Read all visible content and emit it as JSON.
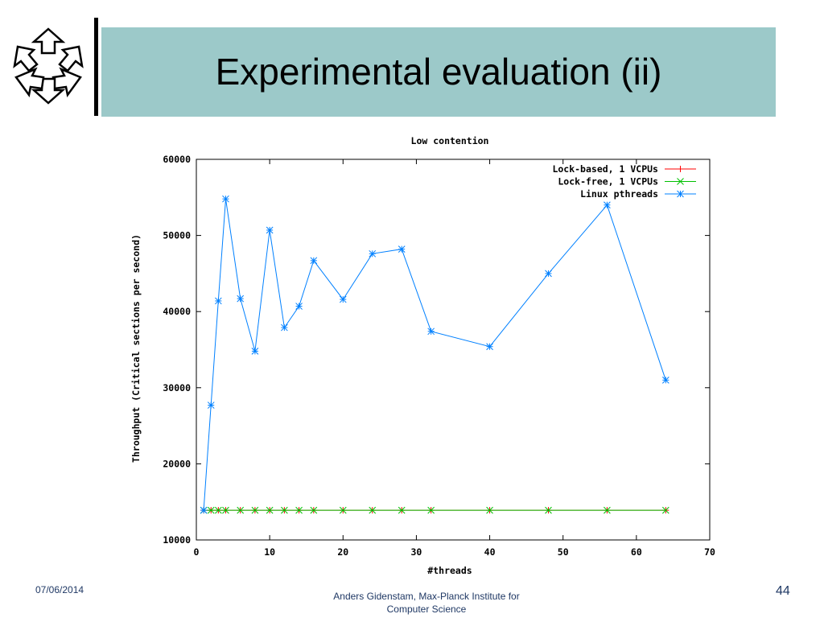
{
  "slide": {
    "title": "Experimental evaluation (ii)",
    "date": "07/06/2014",
    "footer_line1": "Anders Gidenstam, Max-Planck Institute for",
    "footer_line2": "Computer Science",
    "page_number": "44",
    "title_band_color": "#9cc9c9",
    "logo_icon": "mpi-hexagon-logo-icon"
  },
  "chart_data": {
    "type": "line",
    "title": "Low contention",
    "xlabel": "#threads",
    "ylabel": "Throughput (Critical sections per second)",
    "xlim": [
      0,
      70
    ],
    "ylim": [
      10000,
      60000
    ],
    "xticks": [
      0,
      10,
      20,
      30,
      40,
      50,
      60,
      70
    ],
    "yticks": [
      10000,
      20000,
      30000,
      40000,
      50000,
      60000
    ],
    "grid": false,
    "legend_position": "top-right",
    "series": [
      {
        "name": "Lock-based, 1 VCPUs",
        "color": "#ff0000",
        "marker": "plus",
        "x": [
          1,
          2,
          3,
          4,
          6,
          8,
          10,
          12,
          14,
          16,
          20,
          24,
          28,
          32,
          40,
          48,
          56,
          64
        ],
        "y": [
          13900,
          13900,
          13900,
          13900,
          13900,
          13900,
          13900,
          13900,
          13900,
          13900,
          13900,
          13900,
          13900,
          13900,
          13900,
          13900,
          13900,
          13900
        ]
      },
      {
        "name": "Lock-free, 1 VCPUs",
        "color": "#00c000",
        "marker": "cross",
        "x": [
          1,
          2,
          3,
          4,
          6,
          8,
          10,
          12,
          14,
          16,
          20,
          24,
          28,
          32,
          40,
          48,
          56,
          64
        ],
        "y": [
          13900,
          13900,
          13900,
          13900,
          13900,
          13900,
          13900,
          13900,
          13900,
          13900,
          13900,
          13900,
          13900,
          13900,
          13900,
          13900,
          13900,
          13900
        ]
      },
      {
        "name": "Linux pthreads",
        "color": "#0080ff",
        "marker": "star",
        "x": [
          1,
          2,
          3,
          4,
          6,
          8,
          10,
          12,
          14,
          16,
          20,
          24,
          28,
          32,
          40,
          48,
          56,
          64
        ],
        "y": [
          13900,
          27700,
          41400,
          54800,
          41700,
          34800,
          50700,
          37900,
          40700,
          46700,
          41600,
          47600,
          48200,
          37400,
          35400,
          45000,
          54000,
          31000
        ]
      }
    ]
  }
}
